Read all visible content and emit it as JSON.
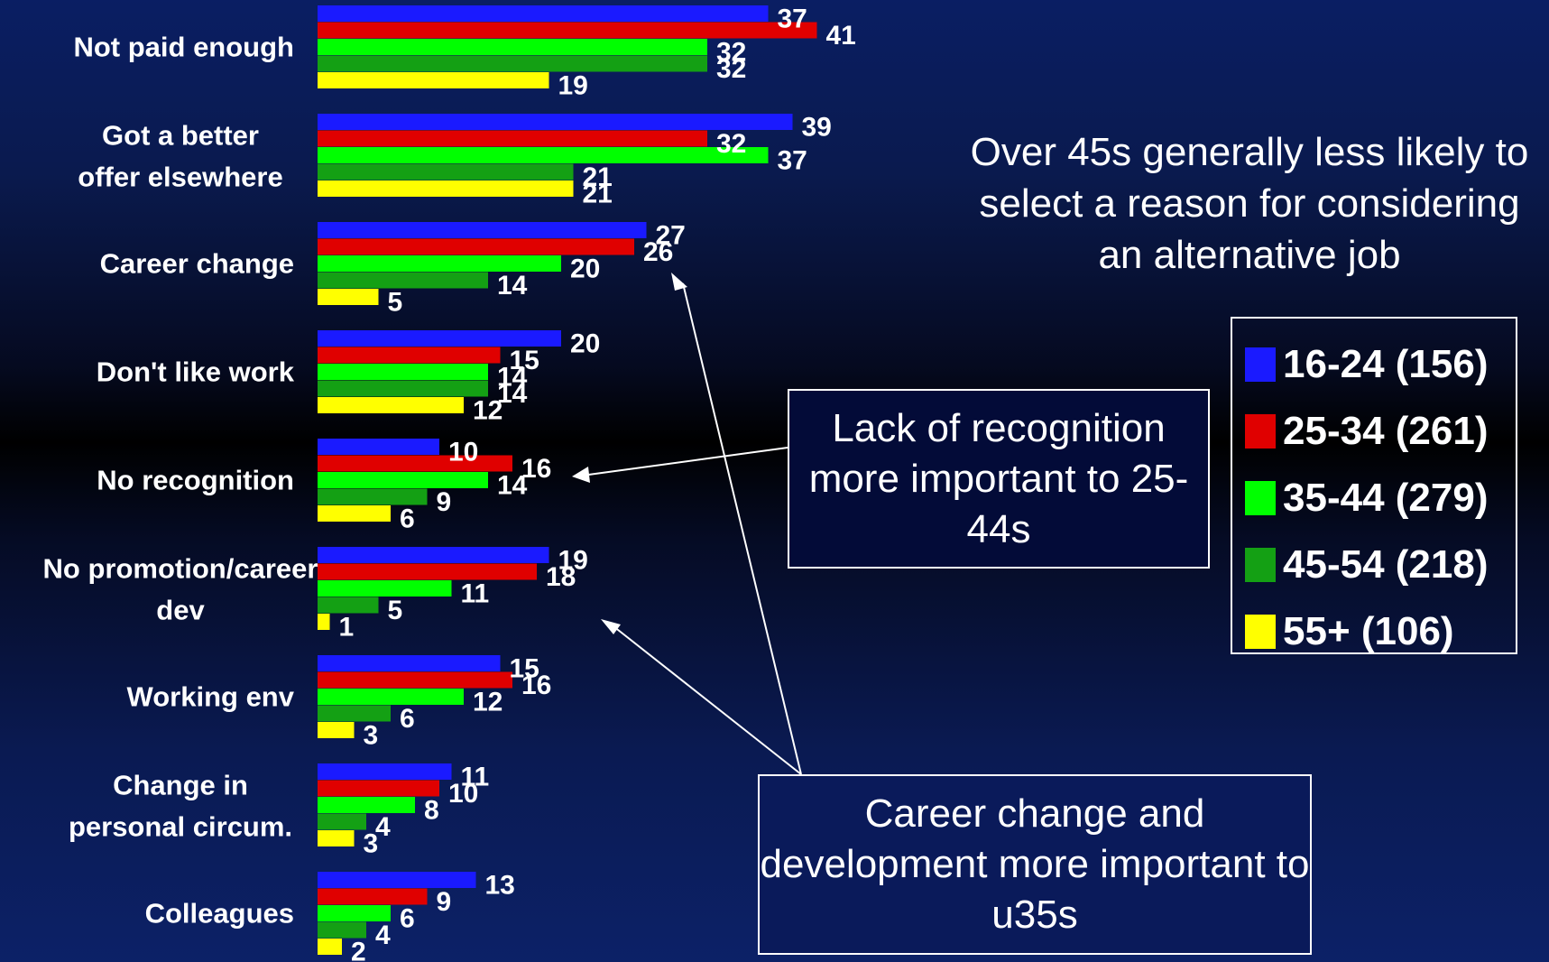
{
  "colors": {
    "16-24": "#1a1aff",
    "25-34": "#e00000",
    "35-44": "#00ff00",
    "45-54": "#14a014",
    "55+": "#ffff00",
    "text": "#ffffff"
  },
  "headline": "Over 45s generally less likely to select a reason for considering an alternative job",
  "notes": {
    "recognition": "Lack of recognition more important to 25-44s",
    "career": "Career change and development more important to u35s"
  },
  "legend": [
    {
      "label": "16-24 (156)",
      "color": "#1a1aff"
    },
    {
      "label": "25-34 (261)",
      "color": "#e00000"
    },
    {
      "label": "35-44 (279)",
      "color": "#00ff00"
    },
    {
      "label": "45-54 (218)",
      "color": "#14a014"
    },
    {
      "label": "55+ (106)",
      "color": "#ffff00"
    }
  ],
  "chart_data": {
    "type": "bar",
    "orientation": "horizontal",
    "categories": [
      "Not paid enough",
      "Got a better offer elsewhere",
      "Career change",
      "Don't like work",
      "No recognition",
      "No promotion/career dev",
      "Working env",
      "Change in personal circum.",
      "Colleagues"
    ],
    "series": [
      {
        "name": "16-24 (156)",
        "color": "#1a1aff",
        "values": [
          37,
          39,
          27,
          20,
          10,
          19,
          15,
          11,
          13
        ]
      },
      {
        "name": "25-34 (261)",
        "color": "#e00000",
        "values": [
          41,
          32,
          26,
          15,
          16,
          18,
          16,
          10,
          9
        ]
      },
      {
        "name": "35-44 (279)",
        "color": "#00ff00",
        "values": [
          32,
          37,
          20,
          14,
          14,
          11,
          12,
          8,
          6
        ]
      },
      {
        "name": "45-54 (218)",
        "color": "#14a014",
        "values": [
          32,
          21,
          14,
          14,
          9,
          5,
          6,
          4,
          4
        ]
      },
      {
        "name": "55+ (106)",
        "color": "#ffff00",
        "values": [
          19,
          21,
          5,
          12,
          6,
          1,
          3,
          3,
          2
        ]
      }
    ],
    "data_labels": true,
    "legend": "right",
    "grid": false
  }
}
